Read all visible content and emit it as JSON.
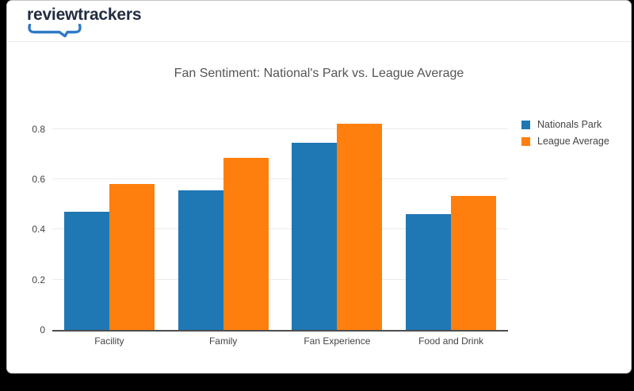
{
  "page": {
    "background_color": "#000000",
    "card_color": "#ffffff"
  },
  "header": {
    "logo_text": "reviewtrackers",
    "logo_text_color": "#232d41",
    "logo_swoosh_color": "#2e7ac5"
  },
  "chart_data": {
    "type": "bar",
    "title": "Fan Sentiment: National's Park vs. League Average",
    "categories": [
      "Facility",
      "Family",
      "Fan Experience",
      "Food and Drink"
    ],
    "series": [
      {
        "name": "Nationals Park",
        "color": "#1f77b4",
        "values": [
          0.47,
          0.555,
          0.745,
          0.46
        ]
      },
      {
        "name": "League Average",
        "color": "#ff7f0e",
        "values": [
          0.58,
          0.685,
          0.82,
          0.535
        ]
      }
    ],
    "xlabel": "",
    "ylabel": "",
    "yticks": [
      0,
      0.2,
      0.4,
      0.6,
      0.8
    ],
    "ylim": [
      0,
      0.875
    ],
    "grid": true,
    "legend_position": "right",
    "axis_line_color": "#4d4d4d",
    "gridline_color": "#ebebeb",
    "tick_label_color": "#444444",
    "title_color": "#555555"
  }
}
